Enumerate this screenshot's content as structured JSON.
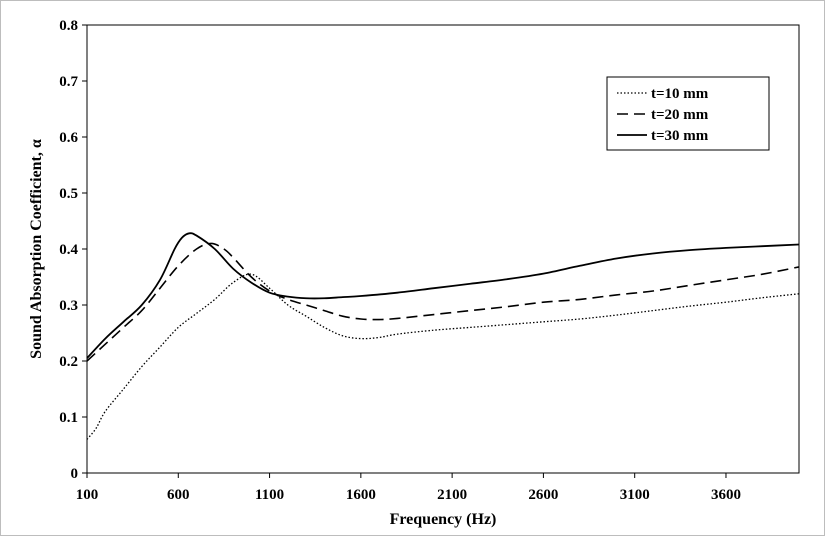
{
  "chart_data": {
    "type": "line",
    "title": "",
    "xlabel": "Frequency (Hz)",
    "ylabel": "Sound Absorption Coefficient, α",
    "xlim": [
      100,
      4000
    ],
    "ylim": [
      0,
      0.8
    ],
    "x_ticks": [
      "100",
      "600",
      "1100",
      "1600",
      "2100",
      "2600",
      "3100",
      "3600"
    ],
    "y_ticks": [
      "0",
      "0.1",
      "0.2",
      "0.3",
      "0.4",
      "0.5",
      "0.6",
      "0.7",
      "0.8"
    ],
    "grid": false,
    "legend_position": "top-right",
    "series": [
      {
        "name": "t=10 mm",
        "style": "dotted",
        "color": "#000000",
        "points": [
          [
            100,
            0.06
          ],
          [
            150,
            0.08
          ],
          [
            200,
            0.11
          ],
          [
            300,
            0.15
          ],
          [
            400,
            0.19
          ],
          [
            500,
            0.225
          ],
          [
            600,
            0.26
          ],
          [
            700,
            0.285
          ],
          [
            800,
            0.31
          ],
          [
            900,
            0.34
          ],
          [
            1000,
            0.355
          ],
          [
            1100,
            0.33
          ],
          [
            1200,
            0.3
          ],
          [
            1300,
            0.28
          ],
          [
            1400,
            0.26
          ],
          [
            1500,
            0.245
          ],
          [
            1600,
            0.24
          ],
          [
            1700,
            0.242
          ],
          [
            1800,
            0.248
          ],
          [
            2000,
            0.255
          ],
          [
            2200,
            0.26
          ],
          [
            2400,
            0.265
          ],
          [
            2600,
            0.27
          ],
          [
            2800,
            0.275
          ],
          [
            3000,
            0.282
          ],
          [
            3200,
            0.29
          ],
          [
            3400,
            0.298
          ],
          [
            3600,
            0.305
          ],
          [
            3800,
            0.313
          ],
          [
            4000,
            0.32
          ]
        ]
      },
      {
        "name": "t=20 mm",
        "style": "dashed",
        "color": "#000000",
        "points": [
          [
            100,
            0.2
          ],
          [
            200,
            0.23
          ],
          [
            300,
            0.26
          ],
          [
            400,
            0.29
          ],
          [
            500,
            0.33
          ],
          [
            600,
            0.37
          ],
          [
            700,
            0.4
          ],
          [
            780,
            0.41
          ],
          [
            850,
            0.4
          ],
          [
            900,
            0.385
          ],
          [
            1000,
            0.35
          ],
          [
            1100,
            0.325
          ],
          [
            1200,
            0.31
          ],
          [
            1300,
            0.3
          ],
          [
            1400,
            0.29
          ],
          [
            1500,
            0.28
          ],
          [
            1600,
            0.275
          ],
          [
            1700,
            0.274
          ],
          [
            1800,
            0.276
          ],
          [
            2000,
            0.283
          ],
          [
            2200,
            0.29
          ],
          [
            2400,
            0.297
          ],
          [
            2600,
            0.305
          ],
          [
            2800,
            0.31
          ],
          [
            3000,
            0.318
          ],
          [
            3200,
            0.325
          ],
          [
            3400,
            0.335
          ],
          [
            3600,
            0.345
          ],
          [
            3800,
            0.355
          ],
          [
            4000,
            0.368
          ]
        ]
      },
      {
        "name": "t=30 mm",
        "style": "solid",
        "color": "#000000",
        "points": [
          [
            100,
            0.205
          ],
          [
            200,
            0.24
          ],
          [
            300,
            0.27
          ],
          [
            400,
            0.3
          ],
          [
            500,
            0.345
          ],
          [
            580,
            0.4
          ],
          [
            620,
            0.42
          ],
          [
            660,
            0.428
          ],
          [
            700,
            0.424
          ],
          [
            800,
            0.4
          ],
          [
            900,
            0.365
          ],
          [
            1000,
            0.34
          ],
          [
            1100,
            0.322
          ],
          [
            1200,
            0.315
          ],
          [
            1300,
            0.312
          ],
          [
            1400,
            0.312
          ],
          [
            1500,
            0.314
          ],
          [
            1600,
            0.316
          ],
          [
            1800,
            0.322
          ],
          [
            2000,
            0.33
          ],
          [
            2200,
            0.338
          ],
          [
            2400,
            0.346
          ],
          [
            2600,
            0.356
          ],
          [
            2800,
            0.37
          ],
          [
            3000,
            0.383
          ],
          [
            3200,
            0.392
          ],
          [
            3400,
            0.398
          ],
          [
            3600,
            0.402
          ],
          [
            3800,
            0.405
          ],
          [
            4000,
            0.408
          ]
        ]
      }
    ]
  }
}
